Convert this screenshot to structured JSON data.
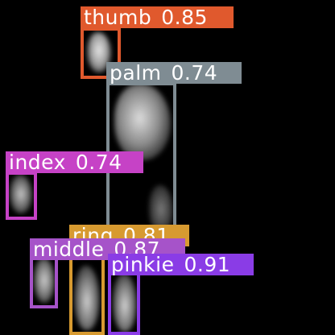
{
  "detections": [
    {
      "id": "thumb",
      "name": "thumb",
      "score": "0.85",
      "color": "#e0592d"
    },
    {
      "id": "palm",
      "name": "palm",
      "score": "0.74",
      "color": "#7f8c93"
    },
    {
      "id": "index",
      "name": "index",
      "score": "0.74",
      "color": "#c642c6"
    },
    {
      "id": "ring",
      "name": "ring",
      "score": "0.81",
      "color": "#d79a30"
    },
    {
      "id": "middle",
      "name": "middle",
      "score": "0.87",
      "color": "#a653c9"
    },
    {
      "id": "pinkie",
      "name": "pinkie",
      "score": "0.91",
      "color": "#8a3ce6"
    }
  ]
}
